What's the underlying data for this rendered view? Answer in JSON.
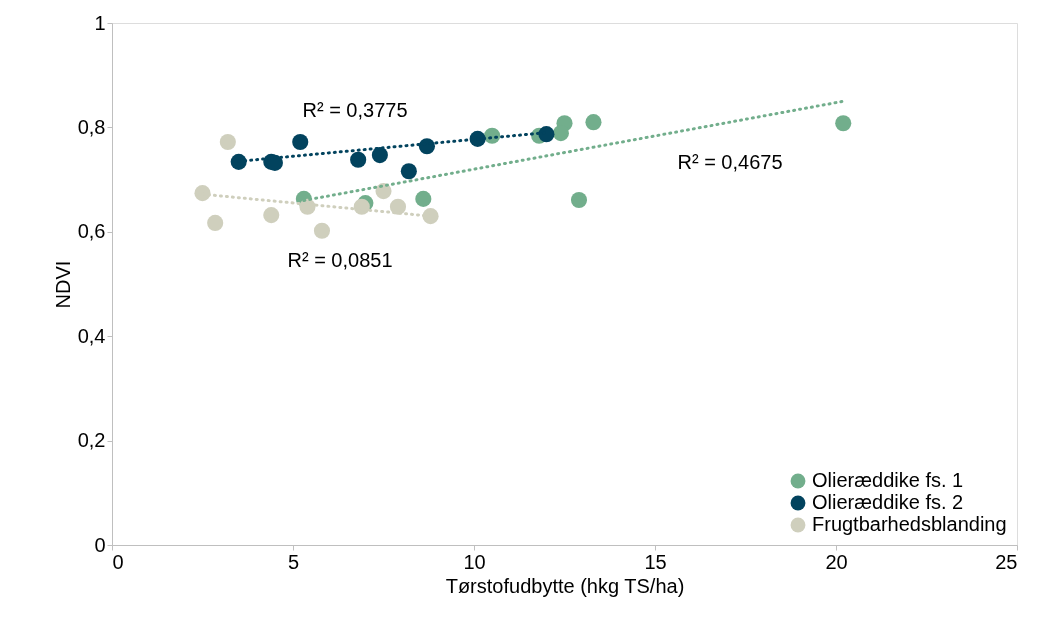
{
  "chart_data": {
    "type": "scatter",
    "xlabel": "Tørstofudbytte (hkg TS/ha)",
    "ylabel": "NDVI",
    "xlim": [
      0,
      25
    ],
    "xticks": [
      0,
      5,
      10,
      15,
      20,
      25
    ],
    "ylim": [
      0,
      1
    ],
    "yticks": [
      0,
      {
        "value": 0.2,
        "label": "0,2"
      },
      {
        "value": 0.4,
        "label": "0,4"
      },
      {
        "value": 0.6,
        "label": "0,6"
      },
      {
        "value": 0.8,
        "label": "0,8"
      },
      1
    ],
    "grid": false,
    "legend": "bottom right",
    "marker": "circle",
    "series": [
      {
        "name": "Olieræddike fs. 1",
        "color": "#72ae8c",
        "x": [
          5.3,
          7.0,
          8.6,
          10.5,
          11.8,
          12.5,
          12.4,
          13.3,
          12.9,
          20.2
        ],
        "values": [
          0.663,
          0.655,
          0.663,
          0.784,
          0.784,
          0.808,
          0.789,
          0.81,
          0.661,
          0.808
        ]
      },
      {
        "name": "Olieræddike fs. 2",
        "color": "#02435e",
        "x": [
          3.5,
          4.4,
          4.5,
          5.2,
          6.8,
          7.4,
          8.7,
          8.2,
          10.1,
          12.0
        ],
        "values": [
          0.734,
          0.734,
          0.732,
          0.772,
          0.738,
          0.747,
          0.764,
          0.716,
          0.778,
          0.787
        ]
      },
      {
        "name": "Frugtbarhedsblanding",
        "color": "#cfcfbd",
        "x": [
          2.5,
          2.85,
          3.2,
          4.4,
          5.4,
          5.8,
          6.9,
          7.5,
          7.9,
          8.8
        ],
        "values": [
          0.674,
          0.617,
          0.772,
          0.632,
          0.648,
          0.602,
          0.648,
          0.678,
          0.648,
          0.63
        ]
      },
      {
        "type": "line",
        "color": "#72ae8c",
        "line_style": "dotted",
        "marker": "none",
        "x": [
          5.3,
          20.2
        ],
        "values": [
          0.66,
          0.85
        ]
      },
      {
        "type": "line",
        "color": "#02435e",
        "line_style": "dotted",
        "marker": "none",
        "x": [
          3.5,
          12.0
        ],
        "values": [
          0.735,
          0.79
        ]
      },
      {
        "type": "line",
        "color": "#cfcfbd",
        "line_style": "dotted",
        "marker": "none",
        "x": [
          2.5,
          8.8
        ],
        "values": [
          0.672,
          0.63
        ]
      }
    ],
    "annotations": [
      "R² = 0,3775",
      "R² = 0,4675",
      "R² = 0,0851"
    ]
  }
}
